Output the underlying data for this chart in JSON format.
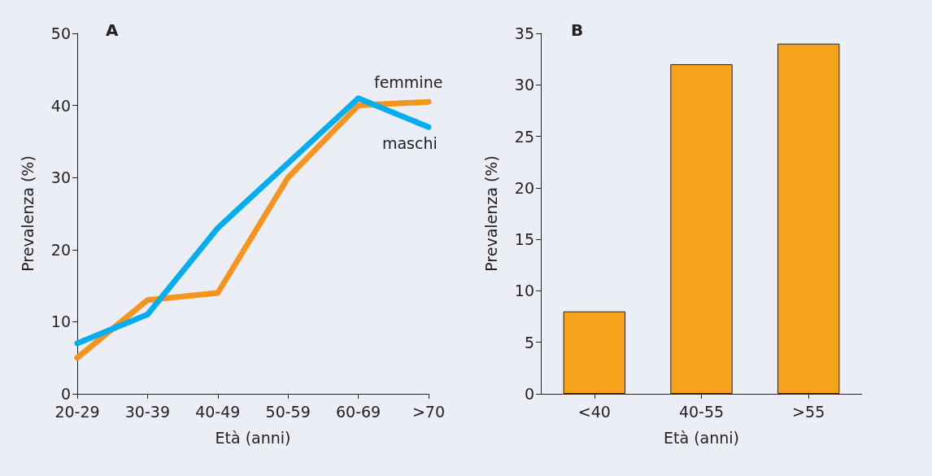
{
  "chart_data": [
    {
      "type": "line",
      "title": "A",
      "xlabel": "Età (anni)",
      "ylabel": "Prevalenza (%)",
      "categories": [
        "20-29",
        "30-39",
        "40-49",
        "50-59",
        "60-69",
        ">70"
      ],
      "series": [
        {
          "name": "femmine",
          "color": "#f7941d",
          "values": [
            5,
            13,
            14,
            30,
            40,
            40.5
          ]
        },
        {
          "name": "maschi",
          "color": "#00aeef",
          "values": [
            7,
            11,
            23,
            32,
            41,
            37
          ]
        }
      ],
      "ylim": [
        0,
        50
      ],
      "yticks": [
        0,
        10,
        20,
        30,
        40,
        50
      ],
      "grid": false,
      "legend": false,
      "marker": "none",
      "line_style": "solid"
    },
    {
      "type": "bar",
      "title": "B",
      "xlabel": "Età (anni)",
      "ylabel": "Prevalenza (%)",
      "categories": [
        "<40",
        "40-55",
        ">55"
      ],
      "values": [
        8,
        32,
        34
      ],
      "color": "#f6a31c",
      "ylim": [
        0,
        35
      ],
      "yticks": [
        0,
        5,
        10,
        15,
        20,
        25,
        30,
        35
      ],
      "grid": false,
      "legend": false
    }
  ]
}
